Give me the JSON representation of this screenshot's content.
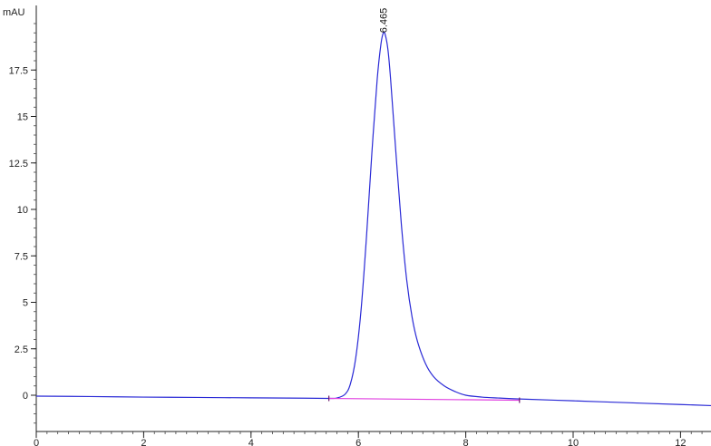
{
  "chart_data": {
    "type": "line",
    "title": "",
    "ylabel": "mAU",
    "xlabel": "",
    "xlim": [
      0,
      12.6
    ],
    "ylim": [
      -1.6,
      20.5
    ],
    "grid": false,
    "x_ticks": [
      0,
      2,
      4,
      6,
      8,
      10,
      12
    ],
    "x_tick_labels": [
      "0",
      "2",
      "4",
      "6",
      "8",
      "10",
      "12"
    ],
    "y_ticks": [
      0,
      2.5,
      5,
      7.5,
      10,
      12.5,
      15,
      17.5
    ],
    "y_tick_labels": [
      "0",
      "2.5",
      "5",
      "7.5",
      "10",
      "12.5",
      "15",
      "17.5"
    ],
    "colors": {
      "signal": "#2a2ad6",
      "baseline": "#e040e0",
      "axis": "#222222"
    },
    "series": [
      {
        "values_x": [
          0,
          1,
          2,
          3,
          4,
          5,
          5.45,
          5.6,
          5.75,
          5.85,
          5.95,
          6.05,
          6.15,
          6.25,
          6.35,
          6.42,
          6.465,
          6.5,
          6.55,
          6.6,
          6.7,
          6.8,
          6.9,
          7.0,
          7.1,
          7.25,
          7.4,
          7.6,
          7.8,
          8.0,
          8.3,
          8.6,
          9.0,
          10,
          11,
          12,
          12.6
        ],
        "values_y": [
          -0.05,
          -0.07,
          -0.1,
          -0.12,
          -0.14,
          -0.16,
          -0.17,
          -0.15,
          0.05,
          0.6,
          2.0,
          4.6,
          8.5,
          13.0,
          17.0,
          18.9,
          19.5,
          19.4,
          18.6,
          17.0,
          13.0,
          9.2,
          6.2,
          4.2,
          2.9,
          1.7,
          1.0,
          0.5,
          0.2,
          0.0,
          -0.1,
          -0.15,
          -0.2,
          -0.3,
          -0.4,
          -0.5,
          -0.56
        ]
      }
    ],
    "baseline": {
      "x": [
        5.45,
        9.0
      ],
      "y": [
        -0.17,
        -0.27
      ]
    },
    "peak_annotation": {
      "label": "6.465",
      "x": 6.465,
      "y": 19.5
    },
    "baseline_markers": [
      5.45,
      9.0
    ]
  }
}
